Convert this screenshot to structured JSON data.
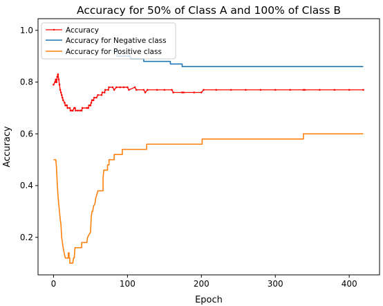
{
  "chart_data": {
    "type": "line",
    "title": "Accuracy for 50% of Class A and 100% of Class B",
    "xlabel": "Epoch",
    "ylabel": "Accuracy",
    "xlim": [
      -21,
      441
    ],
    "ylim": [
      0.055,
      1.045
    ],
    "xticks": [
      0,
      100,
      200,
      300,
      400
    ],
    "xtick_labels": [
      "0",
      "100",
      "200",
      "300",
      "400"
    ],
    "yticks": [
      0.2,
      0.4,
      0.6,
      0.8,
      1.0
    ],
    "ytick_labels": [
      "0.2",
      "0.4",
      "0.6",
      "0.8",
      "1.0"
    ],
    "grid": false,
    "legend": "top-left",
    "series": [
      {
        "name": "Accuracy",
        "color": "#ff0000",
        "marker": "dot",
        "points": [
          [
            0,
            0.79
          ],
          [
            2,
            0.8
          ],
          [
            3,
            0.81
          ],
          [
            4,
            0.8
          ],
          [
            5,
            0.82
          ],
          [
            6,
            0.83
          ],
          [
            7,
            0.81
          ],
          [
            8,
            0.79
          ],
          [
            9,
            0.77
          ],
          [
            10,
            0.76
          ],
          [
            11,
            0.75
          ],
          [
            12,
            0.74
          ],
          [
            13,
            0.73
          ],
          [
            15,
            0.72
          ],
          [
            16,
            0.71
          ],
          [
            18,
            0.71
          ],
          [
            19,
            0.7
          ],
          [
            22,
            0.7
          ],
          [
            23,
            0.69
          ],
          [
            25,
            0.69
          ],
          [
            26,
            0.69
          ],
          [
            28,
            0.7
          ],
          [
            29,
            0.7
          ],
          [
            30,
            0.69
          ],
          [
            33,
            0.69
          ],
          [
            36,
            0.69
          ],
          [
            38,
            0.69
          ],
          [
            39,
            0.7
          ],
          [
            45,
            0.7
          ],
          [
            47,
            0.7
          ],
          [
            48,
            0.71
          ],
          [
            50,
            0.71
          ],
          [
            51,
            0.72
          ],
          [
            52,
            0.73
          ],
          [
            54,
            0.73
          ],
          [
            55,
            0.74
          ],
          [
            58,
            0.74
          ],
          [
            60,
            0.75
          ],
          [
            65,
            0.75
          ],
          [
            66,
            0.76
          ],
          [
            69,
            0.76
          ],
          [
            70,
            0.77
          ],
          [
            74,
            0.77
          ],
          [
            75,
            0.78
          ],
          [
            80,
            0.78
          ],
          [
            82,
            0.77
          ],
          [
            85,
            0.78
          ],
          [
            90,
            0.78
          ],
          [
            95,
            0.78
          ],
          [
            100,
            0.78
          ],
          [
            102,
            0.77
          ],
          [
            110,
            0.78
          ],
          [
            112,
            0.77
          ],
          [
            122,
            0.77
          ],
          [
            124,
            0.76
          ],
          [
            127,
            0.77
          ],
          [
            140,
            0.77
          ],
          [
            150,
            0.77
          ],
          [
            160,
            0.77
          ],
          [
            162,
            0.76
          ],
          [
            174,
            0.76
          ],
          [
            176,
            0.76
          ],
          [
            190,
            0.76
          ],
          [
            200,
            0.76
          ],
          [
            203,
            0.77
          ],
          [
            220,
            0.77
          ],
          [
            240,
            0.77
          ],
          [
            260,
            0.77
          ],
          [
            280,
            0.77
          ],
          [
            300,
            0.77
          ],
          [
            320,
            0.77
          ],
          [
            338,
            0.77
          ],
          [
            340,
            0.77
          ],
          [
            360,
            0.77
          ],
          [
            380,
            0.77
          ],
          [
            400,
            0.77
          ],
          [
            419,
            0.77
          ]
        ]
      },
      {
        "name": "Accuracy for Negative class",
        "color": "#1f77b4",
        "marker": "none",
        "points": [
          [
            80,
            0.92
          ],
          [
            86,
            0.92
          ],
          [
            86,
            0.9
          ],
          [
            104,
            0.9
          ],
          [
            104,
            0.89
          ],
          [
            122,
            0.89
          ],
          [
            122,
            0.88
          ],
          [
            158,
            0.88
          ],
          [
            158,
            0.87
          ],
          [
            174,
            0.87
          ],
          [
            174,
            0.86
          ],
          [
            419,
            0.86
          ]
        ]
      },
      {
        "name": "Accuracy for Positive class",
        "color": "#ff7f0e",
        "marker": "none",
        "points": [
          [
            0,
            0.5
          ],
          [
            3,
            0.5
          ],
          [
            4,
            0.47
          ],
          [
            5,
            0.41
          ],
          [
            6,
            0.36
          ],
          [
            7,
            0.33
          ],
          [
            8,
            0.3
          ],
          [
            9,
            0.27
          ],
          [
            10,
            0.25
          ],
          [
            11,
            0.2
          ],
          [
            12,
            0.18
          ],
          [
            13,
            0.16
          ],
          [
            15,
            0.13
          ],
          [
            16,
            0.12
          ],
          [
            20,
            0.12
          ],
          [
            20,
            0.14
          ],
          [
            21,
            0.14
          ],
          [
            21,
            0.12
          ],
          [
            22,
            0.12
          ],
          [
            22,
            0.1
          ],
          [
            26,
            0.1
          ],
          [
            27,
            0.12
          ],
          [
            28,
            0.12
          ],
          [
            29,
            0.16
          ],
          [
            38,
            0.16
          ],
          [
            38,
            0.18
          ],
          [
            45,
            0.18
          ],
          [
            46,
            0.2
          ],
          [
            50,
            0.22
          ],
          [
            51,
            0.28
          ],
          [
            52,
            0.3
          ],
          [
            53,
            0.3
          ],
          [
            54,
            0.32
          ],
          [
            56,
            0.33
          ],
          [
            57,
            0.35
          ],
          [
            59,
            0.37
          ],
          [
            60,
            0.38
          ],
          [
            67,
            0.38
          ],
          [
            67,
            0.43
          ],
          [
            68,
            0.46
          ],
          [
            73,
            0.46
          ],
          [
            73,
            0.48
          ],
          [
            75,
            0.48
          ],
          [
            75,
            0.5
          ],
          [
            82,
            0.5
          ],
          [
            82,
            0.52
          ],
          [
            93,
            0.52
          ],
          [
            93,
            0.54
          ],
          [
            126,
            0.54
          ],
          [
            126,
            0.56
          ],
          [
            201,
            0.56
          ],
          [
            201,
            0.58
          ],
          [
            338,
            0.58
          ],
          [
            338,
            0.6
          ],
          [
            419,
            0.6
          ]
        ]
      }
    ]
  }
}
